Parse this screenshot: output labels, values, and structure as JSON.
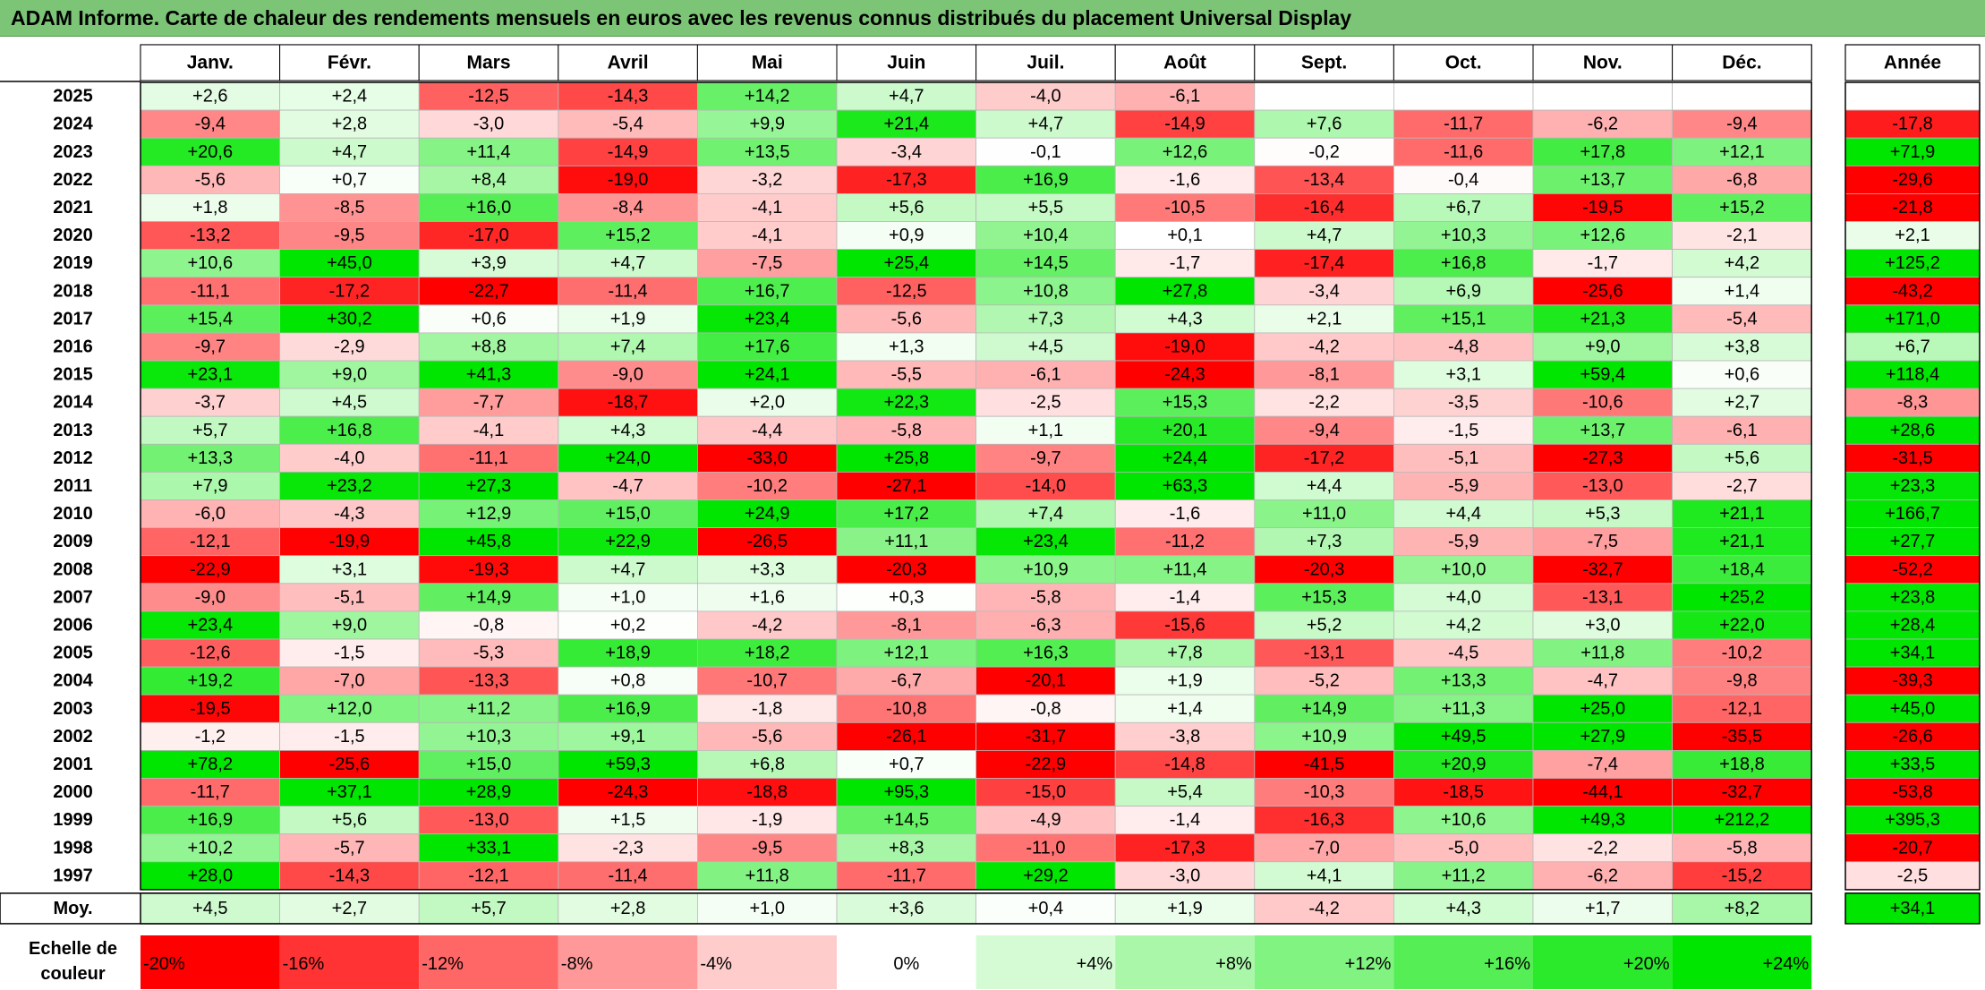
{
  "title": "ADAM Informe. Carte de chaleur des rendements mensuels en euros avec les revenus connus distribués du placement Universal Display",
  "chart_data": {
    "type": "heatmap",
    "months": [
      "Janv.",
      "Févr.",
      "Mars",
      "Avril",
      "Mai",
      "Juin",
      "Juil.",
      "Août",
      "Sept.",
      "Oct.",
      "Nov.",
      "Déc."
    ],
    "year_header": "Année",
    "rows": [
      {
        "year": "2025",
        "values": [
          "+2,6",
          "+2,4",
          "-12,5",
          "-14,3",
          "+14,2",
          "+4,7",
          "-4,0",
          "-6,1",
          "",
          "",
          "",
          ""
        ],
        "annual": ""
      },
      {
        "year": "2024",
        "values": [
          "-9,4",
          "+2,8",
          "-3,0",
          "-5,4",
          "+9,9",
          "+21,4",
          "+4,7",
          "-14,9",
          "+7,6",
          "-11,7",
          "-6,2",
          "-9,4"
        ],
        "annual": "-17,8"
      },
      {
        "year": "2023",
        "values": [
          "+20,6",
          "+4,7",
          "+11,4",
          "-14,9",
          "+13,5",
          "-3,4",
          "-0,1",
          "+12,6",
          "-0,2",
          "-11,6",
          "+17,8",
          "+12,1"
        ],
        "annual": "+71,9"
      },
      {
        "year": "2022",
        "values": [
          "-5,6",
          "+0,7",
          "+8,4",
          "-19,0",
          "-3,2",
          "-17,3",
          "+16,9",
          "-1,6",
          "-13,4",
          "-0,4",
          "+13,7",
          "-6,8"
        ],
        "annual": "-29,6"
      },
      {
        "year": "2021",
        "values": [
          "+1,8",
          "-8,5",
          "+16,0",
          "-8,4",
          "-4,1",
          "+5,6",
          "+5,5",
          "-10,5",
          "-16,4",
          "+6,7",
          "-19,5",
          "+15,2"
        ],
        "annual": "-21,8"
      },
      {
        "year": "2020",
        "values": [
          "-13,2",
          "-9,5",
          "-17,0",
          "+15,2",
          "-4,1",
          "+0,9",
          "+10,4",
          "+0,1",
          "+4,7",
          "+10,3",
          "+12,6",
          "-2,1"
        ],
        "annual": "+2,1"
      },
      {
        "year": "2019",
        "values": [
          "+10,6",
          "+45,0",
          "+3,9",
          "+4,7",
          "-7,5",
          "+25,4",
          "+14,5",
          "-1,7",
          "-17,4",
          "+16,8",
          "-1,7",
          "+4,2"
        ],
        "annual": "+125,2"
      },
      {
        "year": "2018",
        "values": [
          "-11,1",
          "-17,2",
          "-22,7",
          "-11,4",
          "+16,7",
          "-12,5",
          "+10,8",
          "+27,8",
          "-3,4",
          "+6,9",
          "-25,6",
          "+1,4"
        ],
        "annual": "-43,2"
      },
      {
        "year": "2017",
        "values": [
          "+15,4",
          "+30,2",
          "+0,6",
          "+1,9",
          "+23,4",
          "-5,6",
          "+7,3",
          "+4,3",
          "+2,1",
          "+15,1",
          "+21,3",
          "-5,4"
        ],
        "annual": "+171,0"
      },
      {
        "year": "2016",
        "values": [
          "-9,7",
          "-2,9",
          "+8,8",
          "+7,4",
          "+17,6",
          "+1,3",
          "+4,5",
          "-19,0",
          "-4,2",
          "-4,8",
          "+9,0",
          "+3,8"
        ],
        "annual": "+6,7"
      },
      {
        "year": "2015",
        "values": [
          "+23,1",
          "+9,0",
          "+41,3",
          "-9,0",
          "+24,1",
          "-5,5",
          "-6,1",
          "-24,3",
          "-8,1",
          "+3,1",
          "+59,4",
          "+0,6"
        ],
        "annual": "+118,4"
      },
      {
        "year": "2014",
        "values": [
          "-3,7",
          "+4,5",
          "-7,7",
          "-18,7",
          "+2,0",
          "+22,3",
          "-2,5",
          "+15,3",
          "-2,2",
          "-3,5",
          "-10,6",
          "+2,7"
        ],
        "annual": "-8,3"
      },
      {
        "year": "2013",
        "values": [
          "+5,7",
          "+16,8",
          "-4,1",
          "+4,3",
          "-4,4",
          "-5,8",
          "+1,1",
          "+20,1",
          "-9,4",
          "-1,5",
          "+13,7",
          "-6,1"
        ],
        "annual": "+28,6"
      },
      {
        "year": "2012",
        "values": [
          "+13,3",
          "-4,0",
          "-11,1",
          "+24,0",
          "-33,0",
          "+25,8",
          "-9,7",
          "+24,4",
          "-17,2",
          "-5,1",
          "-27,3",
          "+5,6"
        ],
        "annual": "-31,5"
      },
      {
        "year": "2011",
        "values": [
          "+7,9",
          "+23,2",
          "+27,3",
          "-4,7",
          "-10,2",
          "-27,1",
          "-14,0",
          "+63,3",
          "+4,4",
          "-5,9",
          "-13,0",
          "-2,7"
        ],
        "annual": "+23,3"
      },
      {
        "year": "2010",
        "values": [
          "-6,0",
          "-4,3",
          "+12,9",
          "+15,0",
          "+24,9",
          "+17,2",
          "+7,4",
          "-1,6",
          "+11,0",
          "+4,4",
          "+5,3",
          "+21,1"
        ],
        "annual": "+166,7"
      },
      {
        "year": "2009",
        "values": [
          "-12,1",
          "-19,9",
          "+45,8",
          "+22,9",
          "-26,5",
          "+11,1",
          "+23,4",
          "-11,2",
          "+7,3",
          "-5,9",
          "-7,5",
          "+21,1"
        ],
        "annual": "+27,7"
      },
      {
        "year": "2008",
        "values": [
          "-22,9",
          "+3,1",
          "-19,3",
          "+4,7",
          "+3,3",
          "-20,3",
          "+10,9",
          "+11,4",
          "-20,3",
          "+10,0",
          "-32,7",
          "+18,4"
        ],
        "annual": "-52,2"
      },
      {
        "year": "2007",
        "values": [
          "-9,0",
          "-5,1",
          "+14,9",
          "+1,0",
          "+1,6",
          "+0,3",
          "-5,8",
          "-1,4",
          "+15,3",
          "+4,0",
          "-13,1",
          "+25,2"
        ],
        "annual": "+23,8"
      },
      {
        "year": "2006",
        "values": [
          "+23,4",
          "+9,0",
          "-0,8",
          "+0,2",
          "-4,2",
          "-8,1",
          "-6,3",
          "-15,6",
          "+5,2",
          "+4,2",
          "+3,0",
          "+22,0"
        ],
        "annual": "+28,4"
      },
      {
        "year": "2005",
        "values": [
          "-12,6",
          "-1,5",
          "-5,3",
          "+18,9",
          "+18,2",
          "+12,1",
          "+16,3",
          "+7,8",
          "-13,1",
          "-4,5",
          "+11,8",
          "-10,2"
        ],
        "annual": "+34,1"
      },
      {
        "year": "2004",
        "values": [
          "+19,2",
          "-7,0",
          "-13,3",
          "+0,8",
          "-10,7",
          "-6,7",
          "-20,1",
          "+1,9",
          "-5,2",
          "+13,3",
          "-4,7",
          "-9,8"
        ],
        "annual": "-39,3"
      },
      {
        "year": "2003",
        "values": [
          "-19,5",
          "+12,0",
          "+11,2",
          "+16,9",
          "-1,8",
          "-10,8",
          "-0,8",
          "+1,4",
          "+14,9",
          "+11,3",
          "+25,0",
          "-12,1"
        ],
        "annual": "+45,0"
      },
      {
        "year": "2002",
        "values": [
          "-1,2",
          "-1,5",
          "+10,3",
          "+9,1",
          "-5,6",
          "-26,1",
          "-31,7",
          "-3,8",
          "+10,9",
          "+49,5",
          "+27,9",
          "-35,5"
        ],
        "annual": "-26,6"
      },
      {
        "year": "2001",
        "values": [
          "+78,2",
          "-25,6",
          "+15,0",
          "+59,3",
          "+6,8",
          "+0,7",
          "-22,9",
          "-14,8",
          "-41,5",
          "+20,9",
          "-7,4",
          "+18,8"
        ],
        "annual": "+33,5"
      },
      {
        "year": "2000",
        "values": [
          "-11,7",
          "+37,1",
          "+28,9",
          "-24,3",
          "-18,8",
          "+95,3",
          "-15,0",
          "+5,4",
          "-10,3",
          "-18,5",
          "-44,1",
          "-32,7"
        ],
        "annual": "-53,8"
      },
      {
        "year": "1999",
        "values": [
          "+16,9",
          "+5,6",
          "-13,0",
          "+1,5",
          "-1,9",
          "+14,5",
          "-4,9",
          "-1,4",
          "-16,3",
          "+10,6",
          "+49,3",
          "+212,2"
        ],
        "annual": "+395,3"
      },
      {
        "year": "1998",
        "values": [
          "+10,2",
          "-5,7",
          "+33,1",
          "-2,3",
          "-9,5",
          "+8,3",
          "-11,0",
          "-17,3",
          "-7,0",
          "-5,0",
          "-2,2",
          "-5,8"
        ],
        "annual": "-20,7"
      },
      {
        "year": "1997",
        "values": [
          "+28,0",
          "-14,3",
          "-12,1",
          "-11,4",
          "+11,8",
          "-11,7",
          "+29,2",
          "-3,0",
          "+4,1",
          "+11,2",
          "-6,2",
          "-15,2"
        ],
        "annual": "-2,5"
      }
    ],
    "average": {
      "label": "Moy.",
      "values": [
        "+4,5",
        "+2,7",
        "+5,7",
        "+2,8",
        "+1,0",
        "+3,6",
        "+0,4",
        "+1,9",
        "-4,2",
        "+4,3",
        "+1,7",
        "+8,2"
      ],
      "annual": "+34,1"
    },
    "scale": {
      "label_line1": "Echelle de",
      "label_line2": "couleur",
      "steps": [
        "-20%",
        "-16%",
        "-12%",
        "-8%",
        "-4%",
        "0%",
        "+4%",
        "+8%",
        "+12%",
        "+16%",
        "+20%",
        "+24%"
      ],
      "step_values": [
        -20,
        -16,
        -12,
        -8,
        -4,
        0,
        4,
        8,
        12,
        16,
        20,
        24
      ]
    },
    "colors": {
      "neg_max": "#ff0000",
      "zero": "#ffffff",
      "pos_max": "#00e600",
      "title_bg": "#7cc576",
      "grid": "#b8b8b8"
    }
  }
}
